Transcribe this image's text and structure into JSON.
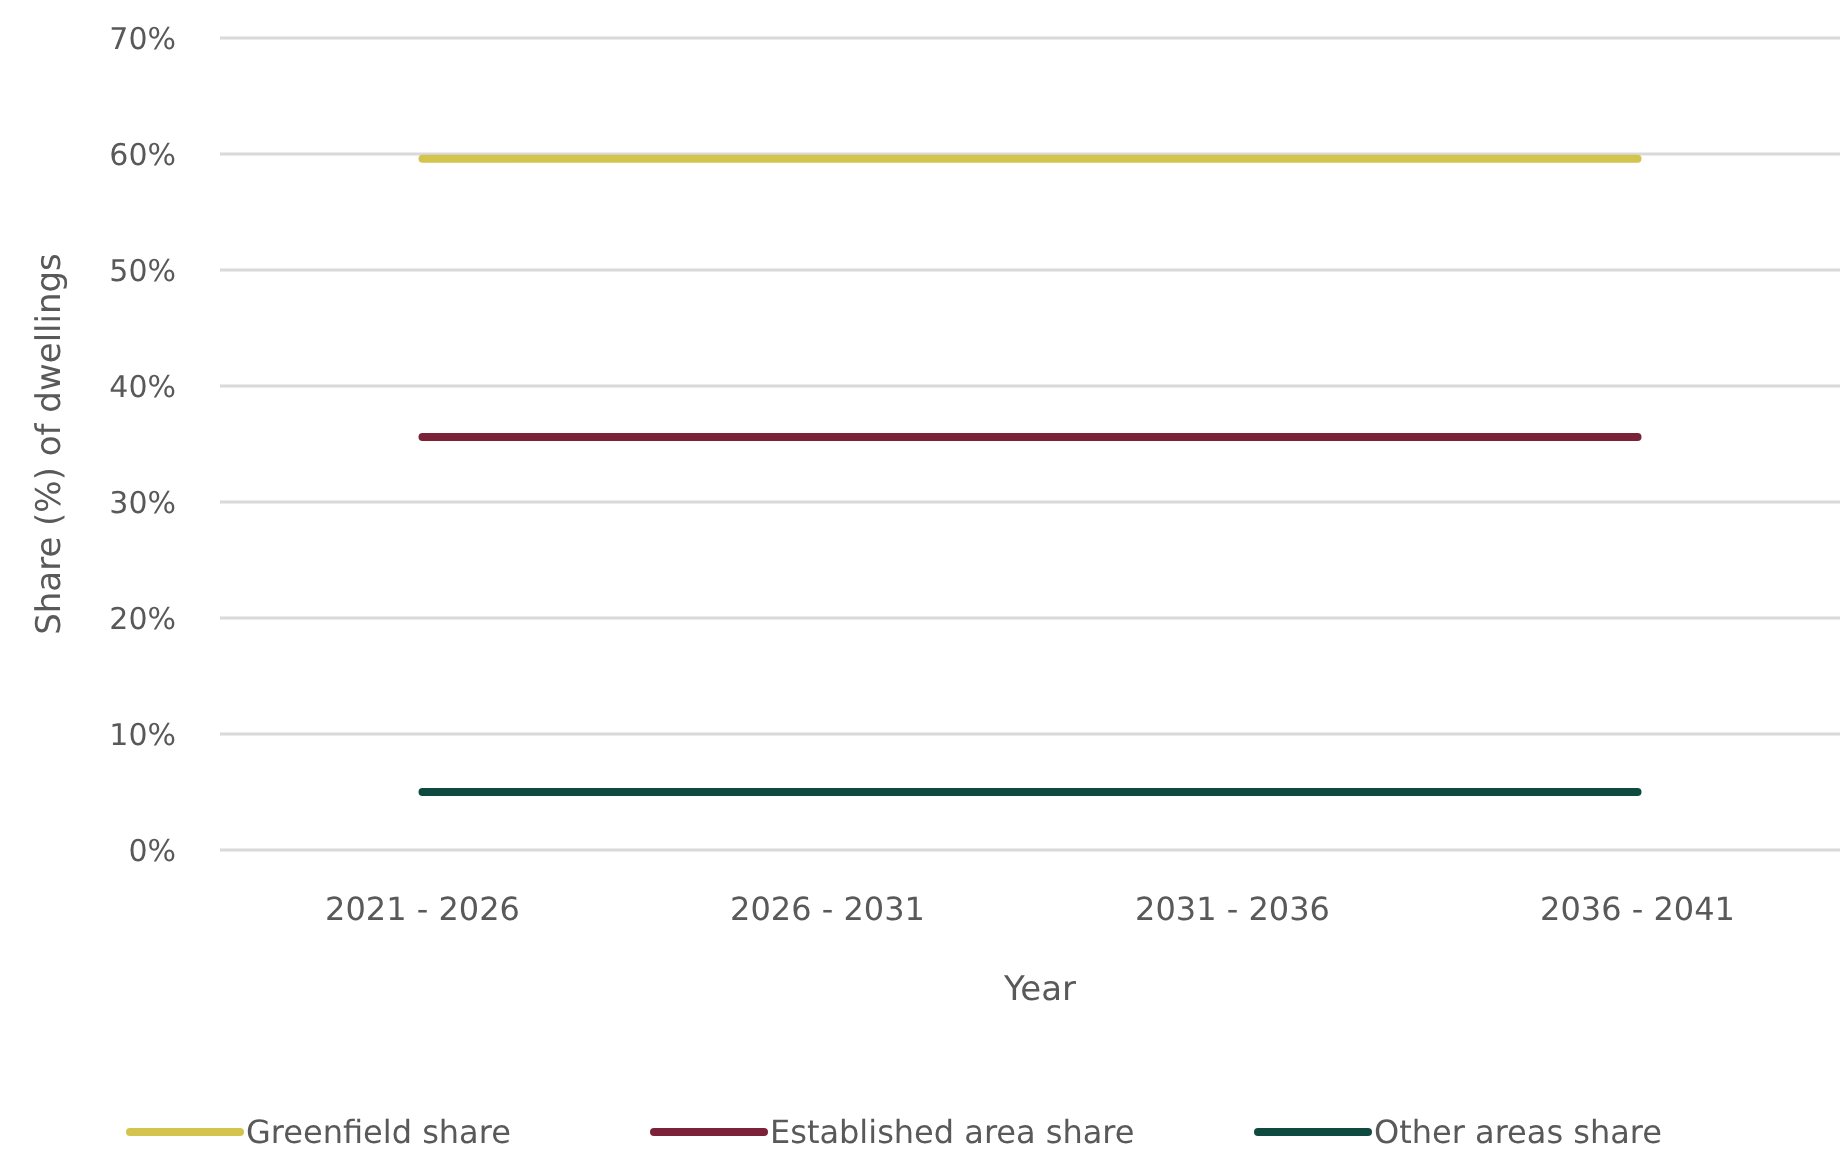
{
  "chart_data": {
    "type": "line",
    "xlabel": "Year",
    "ylabel": "Share (%) of dwellings",
    "categories": [
      "2021 - 2026",
      "2026 - 2031",
      "2031 - 2036",
      "2036 - 2041"
    ],
    "series": [
      {
        "name": "Greenfield share",
        "color": "#d4c44e",
        "values": [
          59.6,
          59.6,
          59.6,
          59.6
        ]
      },
      {
        "name": "Established area share",
        "color": "#7b2238",
        "values": [
          35.6,
          35.6,
          35.6,
          35.6
        ]
      },
      {
        "name": "Other areas share",
        "color": "#0f4a40",
        "values": [
          5,
          5,
          5,
          5
        ]
      }
    ],
    "ylim": [
      0,
      70
    ],
    "yticks": [
      {
        "value": 0,
        "label": "0%"
      },
      {
        "value": 10,
        "label": "10%"
      },
      {
        "value": 20,
        "label": "20%"
      },
      {
        "value": 30,
        "label": "30%"
      },
      {
        "value": 40,
        "label": "40%"
      },
      {
        "value": 50,
        "label": "50%"
      },
      {
        "value": 60,
        "label": "60%"
      },
      {
        "value": 70,
        "label": "70%"
      }
    ],
    "grid": "y",
    "legend": "bottom",
    "marker": "none",
    "line_style": "solid"
  }
}
